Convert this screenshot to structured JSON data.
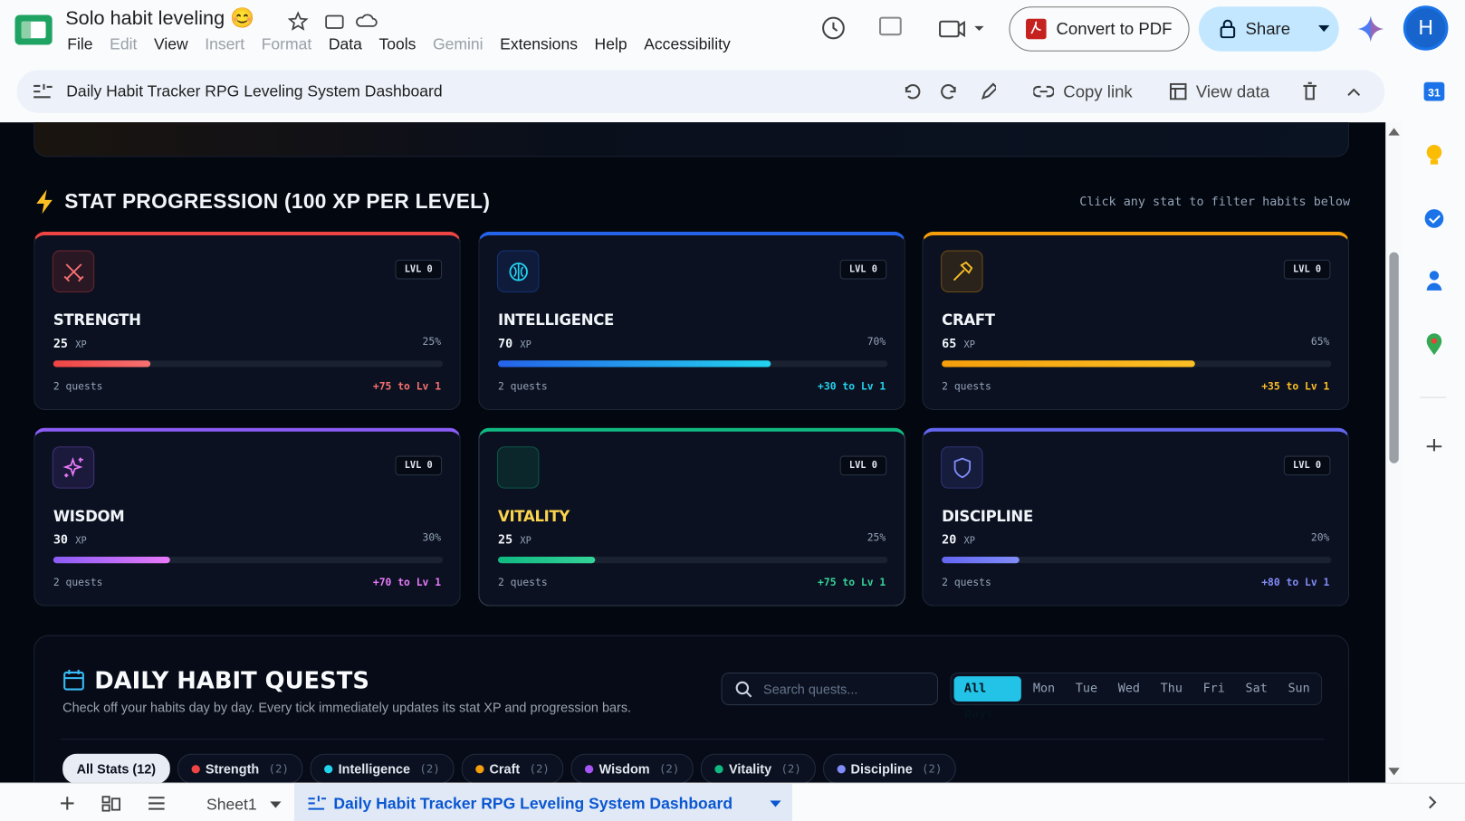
{
  "app": {
    "doc_title": "Solo habit leveling 😊",
    "menu": [
      {
        "label": "File",
        "enabled": true
      },
      {
        "label": "Edit",
        "enabled": false
      },
      {
        "label": "View",
        "enabled": true
      },
      {
        "label": "Insert",
        "enabled": false
      },
      {
        "label": "Format",
        "enabled": false
      },
      {
        "label": "Data",
        "enabled": true
      },
      {
        "label": "Tools",
        "enabled": true
      },
      {
        "label": "Gemini",
        "enabled": false
      },
      {
        "label": "Extensions",
        "enabled": true
      },
      {
        "label": "Help",
        "enabled": true
      },
      {
        "label": "Accessibility",
        "enabled": true
      }
    ],
    "convert_button": "Convert to PDF",
    "share_button": "Share",
    "avatar": "H"
  },
  "chart_toolbar": {
    "title": "Daily Habit Tracker RPG Leveling System Dashboard",
    "copy_link": "Copy link",
    "view_data": "View data"
  },
  "side_panel": {
    "calendar_day": "31"
  },
  "dashboard": {
    "stat_section": {
      "title": "STAT PROGRESSION (100 XP PER LEVEL)",
      "hint": "Click any stat to filter habits below",
      "xlim": [
        0,
        100
      ],
      "stats": [
        {
          "name": "STRENGTH",
          "level": "LVL 0",
          "xp": 25,
          "xp_unit": "XP",
          "percent": "25%",
          "quests": "2 quests",
          "to_next": "+75 to Lv 1",
          "color": "#ef4444",
          "color2": "#f87171"
        },
        {
          "name": "INTELLIGENCE",
          "level": "LVL 0",
          "xp": 70,
          "xp_unit": "XP",
          "percent": "70%",
          "quests": "2 quests",
          "to_next": "+30 to Lv 1",
          "color": "#2563eb",
          "color2": "#22d3ee"
        },
        {
          "name": "CRAFT",
          "level": "LVL 0",
          "xp": 65,
          "xp_unit": "XP",
          "percent": "65%",
          "quests": "2 quests",
          "to_next": "+35 to Lv 1",
          "color": "#f59e0b",
          "color2": "#fbbf24"
        },
        {
          "name": "WISDOM",
          "level": "LVL 0",
          "xp": 30,
          "xp_unit": "XP",
          "percent": "30%",
          "quests": "2 quests",
          "to_next": "+70 to Lv 1",
          "color": "#8b5cf6",
          "color2": "#e879f9"
        },
        {
          "name": "VITALITY",
          "level": "LVL 0",
          "xp": 25,
          "xp_unit": "XP",
          "percent": "25%",
          "quests": "2 quests",
          "to_next": "+75 to Lv 1",
          "color": "#10b981",
          "color2": "#34d399"
        },
        {
          "name": "DISCIPLINE",
          "level": "LVL 0",
          "xp": 20,
          "xp_unit": "XP",
          "percent": "20%",
          "quests": "2 quests",
          "to_next": "+80 to Lv 1",
          "color": "#6366f1",
          "color2": "#818cf8"
        }
      ]
    },
    "quests_section": {
      "title": "DAILY HABIT QUESTS",
      "subtitle": "Check off your habits day by day. Every tick immediately updates its stat XP and progression bars.",
      "search_placeholder": "Search quests...",
      "days": [
        "All Days",
        "Mon",
        "Tue",
        "Wed",
        "Thu",
        "Fri",
        "Sat",
        "Sun"
      ],
      "stat_filters": [
        {
          "label": "All Stats (12)"
        },
        {
          "label": "Strength",
          "count": "(2)",
          "color": "#ef4444"
        },
        {
          "label": "Intelligence",
          "count": "(2)",
          "color": "#22d3ee"
        },
        {
          "label": "Craft",
          "count": "(2)",
          "color": "#f59e0b"
        },
        {
          "label": "Wisdom",
          "count": "(2)",
          "color": "#a855f7"
        },
        {
          "label": "Vitality",
          "count": "(2)",
          "color": "#10b981"
        },
        {
          "label": "Discipline",
          "count": "(2)",
          "color": "#818cf8"
        }
      ]
    }
  },
  "sheet_tabs": {
    "tabs": [
      "Sheet1",
      "Daily Habit Tracker RPG Leveling System Dashboard"
    ]
  }
}
